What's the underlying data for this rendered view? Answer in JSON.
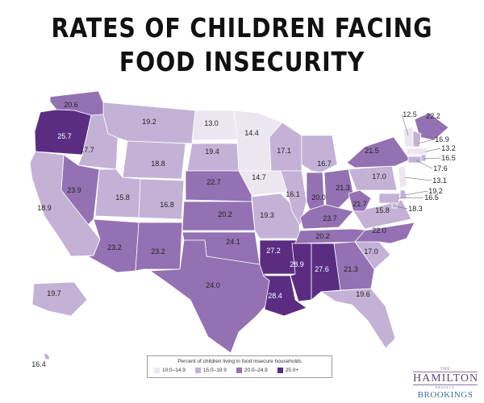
{
  "title_line1": "RATES OF CHILDREN FACING",
  "title_line2": "FOOD INSECURITY",
  "legend": {
    "title": "Percent of children living in food insecure households",
    "bins": [
      {
        "label": "10.0–14.9",
        "color": "#ece6f0"
      },
      {
        "label": "15.0–19.9",
        "color": "#c3b2d6"
      },
      {
        "label": "20.0–24.9",
        "color": "#9471b2"
      },
      {
        "label": "25.0+",
        "color": "#5a2d82"
      }
    ]
  },
  "states": [
    {
      "state": "WA",
      "value": "20.6"
    },
    {
      "state": "OR",
      "value": "25.7"
    },
    {
      "state": "ID",
      "value": "17.7"
    },
    {
      "state": "MT",
      "value": "19.2"
    },
    {
      "state": "WY",
      "value": "18.8"
    },
    {
      "state": "NV",
      "value": "23.9"
    },
    {
      "state": "CA",
      "value": "18.9"
    },
    {
      "state": "UT",
      "value": "15.8"
    },
    {
      "state": "CO",
      "value": "16.8"
    },
    {
      "state": "AZ",
      "value": "23.2"
    },
    {
      "state": "NM",
      "value": "23.2"
    },
    {
      "state": "ND",
      "value": "13.0"
    },
    {
      "state": "SD",
      "value": "19.4"
    },
    {
      "state": "NE",
      "value": "22.7"
    },
    {
      "state": "KS",
      "value": "20.2"
    },
    {
      "state": "OK",
      "value": "24.1"
    },
    {
      "state": "TX",
      "value": "24.0"
    },
    {
      "state": "MN",
      "value": "14.4"
    },
    {
      "state": "IA",
      "value": "14.7"
    },
    {
      "state": "MO",
      "value": "19.3"
    },
    {
      "state": "AR",
      "value": "27.2"
    },
    {
      "state": "LA",
      "value": "28.4"
    },
    {
      "state": "WI",
      "value": "17.1"
    },
    {
      "state": "IL",
      "value": "16.1"
    },
    {
      "state": "MI",
      "value": "16.7"
    },
    {
      "state": "IN",
      "value": "20.0"
    },
    {
      "state": "OH",
      "value": "21.3"
    },
    {
      "state": "KY",
      "value": "23.7"
    },
    {
      "state": "TN",
      "value": "20.2"
    },
    {
      "state": "MS",
      "value": "28.9"
    },
    {
      "state": "AL",
      "value": "27.6"
    },
    {
      "state": "GA",
      "value": "21.3"
    },
    {
      "state": "FL",
      "value": "19.6"
    },
    {
      "state": "SC",
      "value": "17.0"
    },
    {
      "state": "NC",
      "value": "22.0"
    },
    {
      "state": "VA",
      "value": "15.8"
    },
    {
      "state": "WV",
      "value": "21.7"
    },
    {
      "state": "PA",
      "value": "17.0"
    },
    {
      "state": "NY",
      "value": "21.5"
    },
    {
      "state": "ME",
      "value": "22.2"
    },
    {
      "state": "VT",
      "value": "12.5"
    },
    {
      "state": "NH",
      "value": "16.9"
    },
    {
      "state": "MA",
      "value": "13.2"
    },
    {
      "state": "RI",
      "value": "16.5"
    },
    {
      "state": "CT",
      "value": "17.6"
    },
    {
      "state": "NJ",
      "value": "13.1"
    },
    {
      "state": "DE",
      "value": "19.2"
    },
    {
      "state": "MD",
      "value": "16.5"
    },
    {
      "state": "DC",
      "value": "18.3"
    },
    {
      "state": "AK",
      "value": "19.7"
    },
    {
      "state": "HI",
      "value": "16.4"
    }
  ],
  "logo": {
    "the": "THE",
    "name": "HAMILTON",
    "project": "PROJECT",
    "org": "BROOKINGS"
  }
}
